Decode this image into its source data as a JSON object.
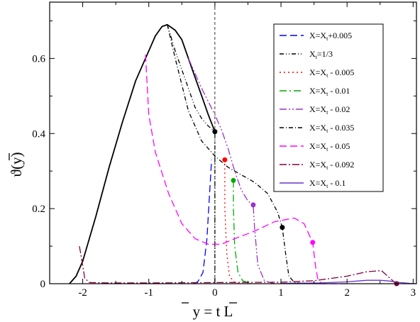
{
  "chart_data": {
    "type": "line",
    "xlabel": "y = t L",
    "ylabel": "ϑ(y)",
    "xlim": [
      -2.5,
      3.05
    ],
    "ylim": [
      0,
      0.75
    ],
    "x_ticks": [
      "-2",
      "-1",
      "0",
      "1",
      "2",
      "3"
    ],
    "y_ticks": [
      "0",
      "0.2",
      "0.4",
      "0.6"
    ],
    "x_tick_values": [
      -2,
      -1,
      0,
      1,
      2,
      3
    ],
    "y_tick_values": [
      0,
      0.2,
      0.4,
      0.6
    ],
    "legend_position": "top-right",
    "reference_line_x": 0,
    "envelope": {
      "color": "#000000",
      "points": [
        [
          -2.2,
          0
        ],
        [
          -2.1,
          0.02
        ],
        [
          -2.0,
          0.06
        ],
        [
          -1.8,
          0.18
        ],
        [
          -1.6,
          0.31
        ],
        [
          -1.4,
          0.43
        ],
        [
          -1.2,
          0.54
        ],
        [
          -1.0,
          0.62
        ],
        [
          -0.9,
          0.66
        ],
        [
          -0.8,
          0.685
        ],
        [
          -0.72,
          0.69
        ],
        [
          -0.6,
          0.675
        ],
        [
          -0.5,
          0.65
        ],
        [
          -0.4,
          0.6
        ],
        [
          -0.3,
          0.55
        ],
        [
          -0.2,
          0.5
        ],
        [
          -0.1,
          0.45
        ],
        [
          0.0,
          0.405
        ]
      ]
    },
    "series": [
      {
        "name": "X=X_t+0.005",
        "color": "#0000ff",
        "dash": "10,5",
        "points": [
          [
            -0.32,
            0
          ],
          [
            -0.26,
            0.005
          ],
          [
            -0.18,
            0.03
          ],
          [
            -0.12,
            0.12
          ],
          [
            -0.08,
            0.24
          ],
          [
            -0.06,
            0.3
          ],
          [
            -0.05,
            0.33
          ]
        ],
        "dot": null
      },
      {
        "name": "X_t=1/3",
        "color": "#000000",
        "dash": "6,3,1,3,1,3",
        "points": [
          [
            -0.72,
            0.69
          ],
          [
            -0.6,
            0.62
          ],
          [
            -0.5,
            0.57
          ],
          [
            -0.4,
            0.52
          ],
          [
            -0.3,
            0.47
          ],
          [
            -0.2,
            0.44
          ],
          [
            -0.1,
            0.42
          ],
          [
            0.0,
            0.405
          ],
          [
            0.0,
            0.2
          ],
          [
            0.0,
            0.05
          ],
          [
            0.0,
            0
          ]
        ],
        "dot": [
          0.0,
          0.405
        ]
      },
      {
        "name": "X=X_t - 0.005",
        "color": "#ff0000",
        "dash": "2,4",
        "points": [
          [
            0.15,
            0.33
          ],
          [
            0.15,
            0.2
          ],
          [
            0.18,
            0.08
          ],
          [
            0.22,
            0.02
          ],
          [
            0.3,
            0.003
          ],
          [
            0.4,
            0
          ]
        ],
        "dot": [
          0.15,
          0.33
        ]
      },
      {
        "name": "X=X_t - 0.01",
        "color": "#00aa00",
        "dash": "10,4,2,4",
        "points": [
          [
            0.28,
            0.275
          ],
          [
            0.28,
            0.2
          ],
          [
            0.3,
            0.1
          ],
          [
            0.35,
            0.03
          ],
          [
            0.42,
            0.008
          ],
          [
            0.55,
            0
          ]
        ],
        "dot": [
          0.28,
          0.275
        ]
      },
      {
        "name": "X=X_t - 0.02",
        "color": "#9932cc",
        "dash": "10,3,2,3,2,3",
        "points": [
          [
            -0.4,
            0.6
          ],
          [
            -0.2,
            0.52
          ],
          [
            0.0,
            0.45
          ],
          [
            0.1,
            0.41
          ],
          [
            0.2,
            0.36
          ],
          [
            0.3,
            0.3
          ],
          [
            0.4,
            0.25
          ],
          [
            0.5,
            0.22
          ],
          [
            0.58,
            0.21
          ],
          [
            0.6,
            0.15
          ],
          [
            0.65,
            0.05
          ],
          [
            0.75,
            0.008
          ],
          [
            0.9,
            0
          ]
        ],
        "dot": [
          0.58,
          0.21
        ]
      },
      {
        "name": "X=X_t - 0.035",
        "color": "#000000",
        "dash": "6,3,1,3",
        "points": [
          [
            -0.72,
            0.69
          ],
          [
            -0.6,
            0.6
          ],
          [
            -0.4,
            0.46
          ],
          [
            -0.2,
            0.38
          ],
          [
            0.0,
            0.34
          ],
          [
            0.2,
            0.31
          ],
          [
            0.4,
            0.29
          ],
          [
            0.6,
            0.27
          ],
          [
            0.8,
            0.24
          ],
          [
            0.95,
            0.19
          ],
          [
            1.02,
            0.15
          ],
          [
            1.07,
            0.08
          ],
          [
            1.12,
            0.02
          ],
          [
            1.2,
            0.004
          ],
          [
            1.35,
            0
          ]
        ],
        "dot": [
          1.02,
          0.15
        ]
      },
      {
        "name": "X=X_t - 0.05",
        "color": "#ff00ff",
        "dash": "10,5",
        "points": [
          [
            -1.05,
            0.61
          ],
          [
            -1.0,
            0.45
          ],
          [
            -0.9,
            0.35
          ],
          [
            -0.7,
            0.24
          ],
          [
            -0.5,
            0.16
          ],
          [
            -0.3,
            0.12
          ],
          [
            -0.1,
            0.105
          ],
          [
            0.1,
            0.105
          ],
          [
            0.3,
            0.12
          ],
          [
            0.6,
            0.14
          ],
          [
            0.9,
            0.165
          ],
          [
            1.2,
            0.175
          ],
          [
            1.35,
            0.16
          ],
          [
            1.48,
            0.11
          ],
          [
            1.52,
            0.05
          ],
          [
            1.56,
            0.01
          ],
          [
            1.62,
            0
          ],
          [
            2.0,
            0
          ]
        ],
        "dot": [
          1.48,
          0.11
        ]
      },
      {
        "name": "X=X_t - 0.092",
        "color": "#800040",
        "dash": "10,3,2,3",
        "points": [
          [
            -2.05,
            0.1
          ],
          [
            -2.02,
            0.07
          ],
          [
            -1.97,
            0.015
          ],
          [
            -1.9,
            0.003
          ],
          [
            -1.6,
            0.002
          ],
          [
            -1.0,
            0.002
          ],
          [
            0.0,
            0.003
          ],
          [
            1.0,
            0.004
          ],
          [
            1.5,
            0.008
          ],
          [
            2.0,
            0.02
          ],
          [
            2.3,
            0.032
          ],
          [
            2.52,
            0.035
          ],
          [
            2.65,
            0.015
          ],
          [
            2.72,
            0.003
          ],
          [
            2.75,
            0
          ]
        ],
        "dot": [
          2.75,
          0.0
        ]
      },
      {
        "name": "X=X_t - 0.1",
        "color": "#6633cc",
        "dash": "",
        "points": [
          [
            1.0,
            0.001
          ],
          [
            1.6,
            0.002
          ],
          [
            2.0,
            0.005
          ],
          [
            2.3,
            0.009
          ],
          [
            2.5,
            0.009
          ],
          [
            2.65,
            0.007
          ],
          [
            2.8,
            0.003
          ],
          [
            2.95,
            0.001
          ],
          [
            3.05,
            0
          ]
        ],
        "dot": null
      }
    ],
    "legend_labels": [
      {
        "main": "X=X",
        "sub": "t",
        "rest": "+0.005"
      },
      {
        "main": "X",
        "sub": "t",
        "rest": "=1/3"
      },
      {
        "main": "X=X",
        "sub": "t",
        "rest": " - 0.005"
      },
      {
        "main": "X=X",
        "sub": "t",
        "rest": " - 0.01"
      },
      {
        "main": "X=X",
        "sub": "t",
        "rest": " - 0.02"
      },
      {
        "main": "X=X",
        "sub": "t",
        "rest": " - 0.035"
      },
      {
        "main": "X=X",
        "sub": "t",
        "rest": " - 0.05"
      },
      {
        "main": "X=X",
        "sub": "t",
        "rest": " - 0.092"
      },
      {
        "main": "X=X",
        "sub": "t",
        "rest": " - 0.1"
      }
    ]
  }
}
